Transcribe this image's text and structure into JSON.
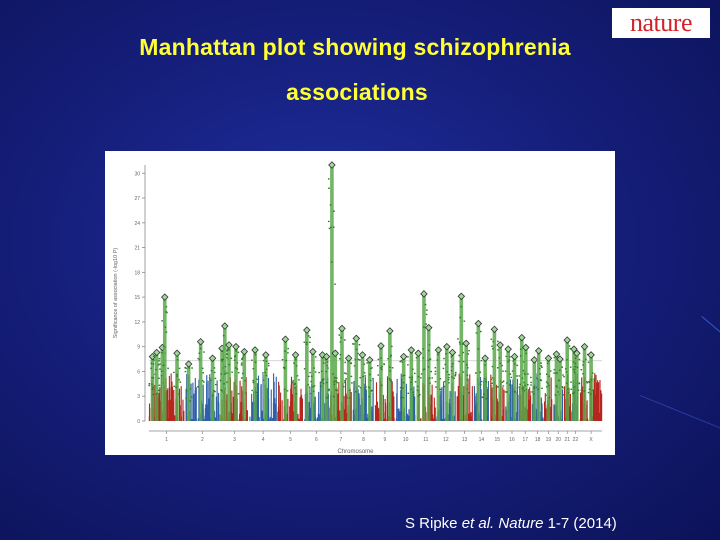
{
  "slide": {
    "title_line1": "Manhattan plot showing schizophrenia",
    "title_line2": "associations",
    "logo_text": "nature",
    "citation_prefix": "S Ripke ",
    "citation_italic": "et al. Nature",
    "citation_suffix": " 1-7 (2014)"
  },
  "colors": {
    "title": "#ffff33",
    "background": "#16207e",
    "chr_red": "#b5261e",
    "chr_blue": "#2e5fa8",
    "hit_green": "#58a84a",
    "logo_red": "#d2232a"
  },
  "chart_data": {
    "type": "scatter",
    "xlabel": "Chromosome",
    "ylabel": "Significance of association (-log10 P)",
    "yticks": [
      0,
      3,
      6,
      9,
      12,
      15,
      18,
      21,
      24,
      27,
      30
    ],
    "ylim": [
      0,
      31
    ],
    "genome_wide_threshold": 7.3,
    "chromosomes": [
      {
        "label": "1",
        "size": 249
      },
      {
        "label": "2",
        "size": 243
      },
      {
        "label": "3",
        "size": 198
      },
      {
        "label": "4",
        "size": 191
      },
      {
        "label": "5",
        "size": 181
      },
      {
        "label": "6",
        "size": 171
      },
      {
        "label": "7",
        "size": 159
      },
      {
        "label": "8",
        "size": 146
      },
      {
        "label": "9",
        "size": 141
      },
      {
        "label": "10",
        "size": 136
      },
      {
        "label": "11",
        "size": 135
      },
      {
        "label": "12",
        "size": 133
      },
      {
        "label": "13",
        "size": 115
      },
      {
        "label": "14",
        "size": 107
      },
      {
        "label": "15",
        "size": 102
      },
      {
        "label": "16",
        "size": 90
      },
      {
        "label": "17",
        "size": 81
      },
      {
        "label": "18",
        "size": 78
      },
      {
        "label": "19",
        "size": 59
      },
      {
        "label": "20",
        "size": 63
      },
      {
        "label": "21",
        "size": 48
      },
      {
        "label": "22",
        "size": 51
      },
      {
        "label": "X",
        "size": 155
      }
    ],
    "peaks": [
      {
        "chr": "1",
        "pos": 0.1,
        "value": 7.8
      },
      {
        "chr": "1",
        "pos": 0.22,
        "value": 8.3
      },
      {
        "chr": "1",
        "pos": 0.38,
        "value": 8.9
      },
      {
        "chr": "1",
        "pos": 0.45,
        "value": 15.0
      },
      {
        "chr": "1",
        "pos": 0.8,
        "value": 8.2
      },
      {
        "chr": "2",
        "pos": 0.1,
        "value": 6.9
      },
      {
        "chr": "2",
        "pos": 0.45,
        "value": 9.6
      },
      {
        "chr": "2",
        "pos": 0.8,
        "value": 7.6
      },
      {
        "chr": "3",
        "pos": 0.05,
        "value": 8.8
      },
      {
        "chr": "3",
        "pos": 0.15,
        "value": 11.5
      },
      {
        "chr": "3",
        "pos": 0.3,
        "value": 9.2
      },
      {
        "chr": "3",
        "pos": 0.55,
        "value": 9.0
      },
      {
        "chr": "3",
        "pos": 0.85,
        "value": 8.4
      },
      {
        "chr": "4",
        "pos": 0.2,
        "value": 8.6
      },
      {
        "chr": "4",
        "pos": 0.6,
        "value": 8.0
      },
      {
        "chr": "5",
        "pos": 0.3,
        "value": 9.9
      },
      {
        "chr": "5",
        "pos": 0.7,
        "value": 8.0
      },
      {
        "chr": "6",
        "pos": 0.1,
        "value": 11.0
      },
      {
        "chr": "6",
        "pos": 0.35,
        "value": 8.4
      },
      {
        "chr": "6",
        "pos": 0.75,
        "value": 8.0
      },
      {
        "chr": "6",
        "pos": 0.92,
        "value": 7.8
      },
      {
        "chr": "7",
        "pos": 0.1,
        "value": 31.0
      },
      {
        "chr": "7",
        "pos": 0.25,
        "value": 8.2
      },
      {
        "chr": "7",
        "pos": 0.55,
        "value": 11.2
      },
      {
        "chr": "7",
        "pos": 0.85,
        "value": 7.6
      },
      {
        "chr": "8",
        "pos": 0.15,
        "value": 10.0
      },
      {
        "chr": "8",
        "pos": 0.45,
        "value": 8.0
      },
      {
        "chr": "8",
        "pos": 0.8,
        "value": 7.4
      },
      {
        "chr": "9",
        "pos": 0.3,
        "value": 9.1
      },
      {
        "chr": "9",
        "pos": 0.75,
        "value": 10.9
      },
      {
        "chr": "10",
        "pos": 0.4,
        "value": 7.8
      },
      {
        "chr": "10",
        "pos": 0.8,
        "value": 8.6
      },
      {
        "chr": "11",
        "pos": 0.1,
        "value": 8.2
      },
      {
        "chr": "11",
        "pos": 0.4,
        "value": 15.4
      },
      {
        "chr": "11",
        "pos": 0.65,
        "value": 11.3
      },
      {
        "chr": "12",
        "pos": 0.1,
        "value": 8.6
      },
      {
        "chr": "12",
        "pos": 0.55,
        "value": 9.0
      },
      {
        "chr": "12",
        "pos": 0.85,
        "value": 8.3
      },
      {
        "chr": "13",
        "pos": 0.3,
        "value": 15.1
      },
      {
        "chr": "13",
        "pos": 0.6,
        "value": 9.4
      },
      {
        "chr": "14",
        "pos": 0.3,
        "value": 11.8
      },
      {
        "chr": "14",
        "pos": 0.75,
        "value": 7.6
      },
      {
        "chr": "15",
        "pos": 0.3,
        "value": 11.1
      },
      {
        "chr": "15",
        "pos": 0.7,
        "value": 9.2
      },
      {
        "chr": "16",
        "pos": 0.2,
        "value": 8.7
      },
      {
        "chr": "16",
        "pos": 0.7,
        "value": 7.8
      },
      {
        "chr": "17",
        "pos": 0.2,
        "value": 10.1
      },
      {
        "chr": "17",
        "pos": 0.55,
        "value": 8.9
      },
      {
        "chr": "18",
        "pos": 0.2,
        "value": 7.4
      },
      {
        "chr": "18",
        "pos": 0.6,
        "value": 8.5
      },
      {
        "chr": "19",
        "pos": 0.5,
        "value": 7.6
      },
      {
        "chr": "20",
        "pos": 0.3,
        "value": 8.1
      },
      {
        "chr": "20",
        "pos": 0.7,
        "value": 7.5
      },
      {
        "chr": "21",
        "pos": 0.5,
        "value": 9.8
      },
      {
        "chr": "22",
        "pos": 0.3,
        "value": 8.7
      },
      {
        "chr": "22",
        "pos": 0.7,
        "value": 8.2
      },
      {
        "chr": "X",
        "pos": 0.2,
        "value": 9.0
      },
      {
        "chr": "X",
        "pos": 0.5,
        "value": 8.0
      }
    ]
  }
}
